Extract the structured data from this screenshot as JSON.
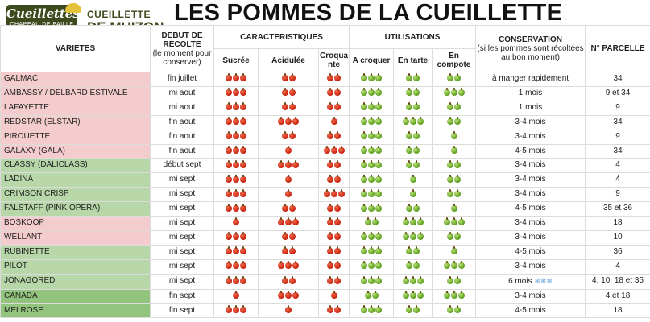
{
  "logo": {
    "brand_line1": "Cueillettes",
    "brand_line2": "CHAPEAU DE PAILLE",
    "site_line1": "CUEILLETTE",
    "site_line2": "DE MUIZON",
    "hat_icon": "straw-hat-icon"
  },
  "title": "LES POMMES DE LA CUEILLETTE",
  "headers": {
    "varietes": "VARIETES",
    "debut_l1": "DEBUT DE",
    "debut_l2": "RECOLTE",
    "debut_l3": "(le moment pour conserver)",
    "caracteristiques": "CARACTERISTIQUES",
    "utilisations": "UTILISATIONS",
    "conservation_l1": "CONSERVATION",
    "conservation_l2": "(si les pommes sont récoltées au bon moment)",
    "parcelle": "N° PARCELLE",
    "sucree": "Sucrée",
    "acidulee": "Acidulée",
    "croquante": "Croquante",
    "a_croquer": "A croquer",
    "en_tarte": "En tarte",
    "en_compote": "En compote"
  },
  "colors": {
    "pink_row": "#f4cccd",
    "green_row": "#b7d7a8",
    "dark_green_row": "#93c47d",
    "red_apple": "#d0301a",
    "green_apple": "#6aad22",
    "logo_green": "#3c4a1d"
  },
  "icons": {
    "red": "red-apple-icon",
    "green": "green-apple-icon",
    "snow": "snowflake-icon"
  },
  "rows": [
    {
      "name": "GALMAC",
      "color": "pink",
      "debut": "fin juillet",
      "sucree": 3,
      "acidulee": 2,
      "croquante": 2,
      "croquer": 3,
      "tarte": 2,
      "compote": 2,
      "conservation": "à manger rapidement",
      "parcelle": "34"
    },
    {
      "name": "AMBASSY / DELBARD ESTIVALE",
      "color": "pink",
      "debut": "mi aout",
      "sucree": 3,
      "acidulee": 2,
      "croquante": 2,
      "croquer": 3,
      "tarte": 2,
      "compote": 3,
      "conservation": "1 mois",
      "parcelle": "9 et 34"
    },
    {
      "name": "LAFAYETTE",
      "color": "pink",
      "debut": "mi aout",
      "sucree": 3,
      "acidulee": 2,
      "croquante": 2,
      "croquer": 3,
      "tarte": 2,
      "compote": 2,
      "conservation": "1 mois",
      "parcelle": "9"
    },
    {
      "name": "REDSTAR (ELSTAR)",
      "color": "pink",
      "debut": "fin aout",
      "sucree": 3,
      "acidulee": 3,
      "croquante": 1,
      "croquer": 3,
      "tarte": 3,
      "compote": 2,
      "conservation": "3-4 mois",
      "parcelle": "34"
    },
    {
      "name": "PIROUETTE",
      "color": "pink",
      "debut": "fin aout",
      "sucree": 3,
      "acidulee": 2,
      "croquante": 2,
      "croquer": 3,
      "tarte": 2,
      "compote": 1,
      "conservation": "3-4 mois",
      "parcelle": "9"
    },
    {
      "name": "GALAXY (GALA)",
      "color": "pink",
      "debut": "fin aout",
      "sucree": 3,
      "acidulee": 1,
      "croquante": 3,
      "croquer": 3,
      "tarte": 2,
      "compote": 1,
      "conservation": "4-5 mois",
      "parcelle": "34"
    },
    {
      "name": "CLASSY (DALICLASS)",
      "color": "green",
      "debut": "début sept",
      "sucree": 3,
      "acidulee": 3,
      "croquante": 2,
      "croquer": 3,
      "tarte": 2,
      "compote": 2,
      "conservation": "3-4 mois",
      "parcelle": "4"
    },
    {
      "name": "LADINA",
      "color": "green",
      "debut": "mi sept",
      "sucree": 3,
      "acidulee": 1,
      "croquante": 2,
      "croquer": 3,
      "tarte": 1,
      "compote": 2,
      "conservation": "3-4 mois",
      "parcelle": "4"
    },
    {
      "name": "CRIMSON CRISP",
      "color": "green",
      "debut": "mi sept",
      "sucree": 3,
      "acidulee": 1,
      "croquante": 3,
      "croquer": 3,
      "tarte": 1,
      "compote": 2,
      "conservation": "3-4 mois",
      "parcelle": "9"
    },
    {
      "name": "FALSTAFF (PINK OPERA)",
      "color": "green",
      "debut": "mi sept",
      "sucree": 3,
      "acidulee": 2,
      "croquante": 2,
      "croquer": 3,
      "tarte": 2,
      "compote": 1,
      "conservation": "4-5 mois",
      "parcelle": "35 et 36"
    },
    {
      "name": "BOSKOOP",
      "color": "pink",
      "debut": "mi sept",
      "sucree": 1,
      "acidulee": 3,
      "croquante": 2,
      "croquer": 2,
      "tarte": 3,
      "compote": 3,
      "conservation": "3-4 mois",
      "parcelle": "18"
    },
    {
      "name": "WELLANT",
      "color": "pink",
      "debut": "mi sept",
      "sucree": 3,
      "acidulee": 2,
      "croquante": 2,
      "croquer": 3,
      "tarte": 3,
      "compote": 2,
      "conservation": "3-4 mois",
      "parcelle": "10"
    },
    {
      "name": "RUBINETTE",
      "color": "green",
      "debut": "mi sept",
      "sucree": 3,
      "acidulee": 2,
      "croquante": 2,
      "croquer": 3,
      "tarte": 2,
      "compote": 1,
      "conservation": "4-5 mois",
      "parcelle": "36"
    },
    {
      "name": "PILOT",
      "color": "green",
      "debut": "mi sept",
      "sucree": 3,
      "acidulee": 3,
      "croquante": 2,
      "croquer": 3,
      "tarte": 2,
      "compote": 3,
      "conservation": "3-4 mois",
      "parcelle": "4"
    },
    {
      "name": "JONAGORED",
      "color": "green",
      "debut": "mi sept",
      "sucree": 3,
      "acidulee": 2,
      "croquante": 2,
      "croquer": 3,
      "tarte": 3,
      "compote": 2,
      "conservation": "6 mois",
      "snow": 3,
      "parcelle": "4, 10, 18 et 35"
    },
    {
      "name": "CANADA",
      "color": "darkgreen",
      "debut": "fin sept",
      "sucree": 1,
      "acidulee": 3,
      "croquante": 1,
      "croquer": 2,
      "tarte": 3,
      "compote": 3,
      "conservation": "3-4 mois",
      "parcelle": "4 et 18"
    },
    {
      "name": "MELROSE",
      "color": "darkgreen",
      "debut": "fin sept",
      "sucree": 3,
      "acidulee": 1,
      "croquante": 2,
      "croquer": 3,
      "tarte": 2,
      "compote": 2,
      "conservation": "4-5 mois",
      "parcelle": "18"
    }
  ]
}
